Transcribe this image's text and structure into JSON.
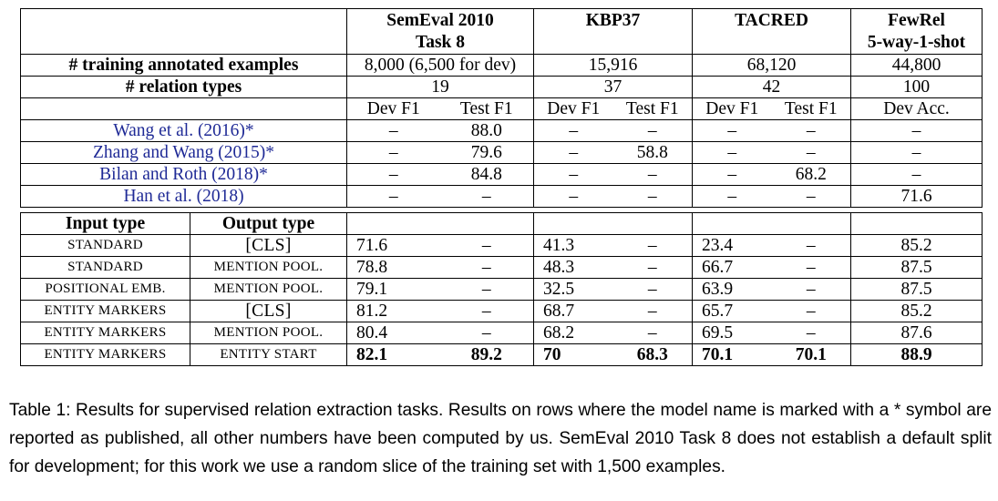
{
  "header": {
    "datasets": [
      {
        "name_line1": "SemEval 2010",
        "name_line2": "Task 8"
      },
      {
        "name_line1": "KBP37",
        "name_line2": ""
      },
      {
        "name_line1": "TACRED",
        "name_line2": ""
      },
      {
        "name_line1": "FewRel",
        "name_line2": "5-way-1-shot"
      }
    ],
    "training_label": "# training annotated examples",
    "training_values": [
      "8,000 (6,500 for dev)",
      "15,916",
      "68,120",
      "44,800"
    ],
    "relation_label": "# relation types",
    "relation_values": [
      "19",
      "37",
      "42",
      "100"
    ],
    "metrics": [
      "Dev F1",
      "Test F1",
      "Dev F1",
      "Test F1",
      "Dev F1",
      "Test F1",
      "Dev Acc."
    ]
  },
  "published": [
    {
      "model": "Wang et al. (2016)*",
      "values": [
        "–",
        "88.0",
        "–",
        "–",
        "–",
        "–",
        "–"
      ]
    },
    {
      "model": "Zhang and Wang (2015)*",
      "values": [
        "–",
        "79.6",
        "–",
        "58.8",
        "–",
        "–",
        "–"
      ]
    },
    {
      "model": "Bilan and Roth (2018)*",
      "values": [
        "–",
        "84.8",
        "–",
        "–",
        "–",
        "68.2",
        "–"
      ]
    },
    {
      "model": "Han et al. (2018)",
      "values": [
        "–",
        "–",
        "–",
        "–",
        "–",
        "–",
        "71.6"
      ]
    }
  ],
  "ours_header": {
    "input": "Input type",
    "output": "Output type"
  },
  "ours": [
    {
      "input": "STANDARD",
      "output": "[CLS]",
      "values": [
        "71.6",
        "–",
        "41.3",
        "–",
        "23.4",
        "–",
        "85.2"
      ]
    },
    {
      "input": "STANDARD",
      "output": "MENTION POOL.",
      "values": [
        "78.8",
        "–",
        "48.3",
        "–",
        "66.7",
        "–",
        "87.5"
      ]
    },
    {
      "input": "POSITIONAL EMB.",
      "output": "MENTION POOL.",
      "values": [
        "79.1",
        "–",
        "32.5",
        "–",
        "63.9",
        "–",
        "87.5"
      ]
    },
    {
      "input": "ENTITY MARKERS",
      "output": "[CLS]",
      "values": [
        "81.2",
        "–",
        "68.7",
        "–",
        "65.7",
        "–",
        "85.2"
      ]
    },
    {
      "input": "ENTITY MARKERS",
      "output": "MENTION POOL.",
      "values": [
        "80.4",
        "–",
        "68.2",
        "–",
        "69.5",
        "–",
        "87.6"
      ]
    },
    {
      "input": "ENTITY MARKERS",
      "output": "ENTITY START",
      "values": [
        "82.1",
        "89.2",
        "70",
        "68.3",
        "70.1",
        "70.1",
        "88.9"
      ]
    }
  ],
  "caption": "Table 1: Results for supervised relation extraction tasks. Results on rows where the model name is marked with a * symbol are reported as published, all other numbers have been computed by us. SemEval 2010 Task 8 does not establish a default split for development; for this work we use a random slice of the training set with 1,500 examples."
}
